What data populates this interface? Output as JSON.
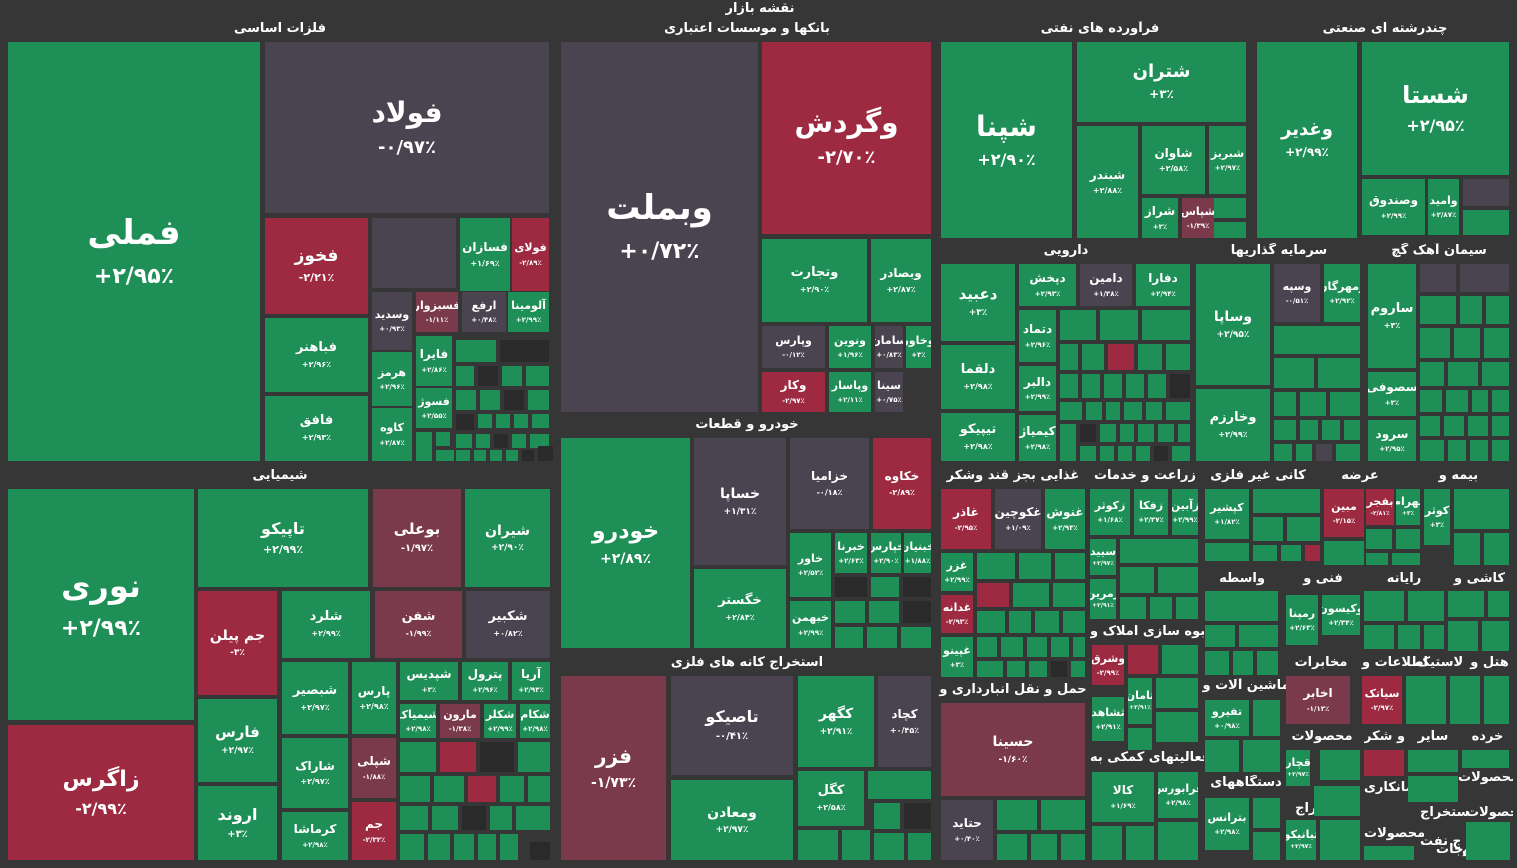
{
  "title": "نقشه بازار",
  "colors": {
    "green": "#1e8f57",
    "red": "#9d2a41",
    "neutral": "#4a4451",
    "pink": "#7a3a4b",
    "background": "#363636"
  },
  "sectors": [
    {
      "name": "فلزات اساسی",
      "tiles": [
        {
          "sym": "فملی",
          "pct": "+۲/۹۵٪",
          "tone": "g"
        },
        {
          "sym": "فولاد",
          "pct": "-۰/۹۷٪",
          "tone": "n"
        },
        {
          "sym": "فخوز",
          "pct": "-۲/۲۱٪",
          "tone": "r"
        },
        {
          "sym": "فسازان",
          "pct": "+۱/۶۹٪",
          "tone": "g"
        },
        {
          "sym": "فولای",
          "pct": "-۲/۸۹٪",
          "tone": "r"
        },
        {
          "sym": "فباهنر",
          "pct": "+۲/۹۶٪",
          "tone": "g"
        },
        {
          "sym": "فافق",
          "pct": "+۲/۹۳٪",
          "tone": "g"
        },
        {
          "sym": "وسدید",
          "pct": "+۰/۹۳٪",
          "tone": "n"
        },
        {
          "sym": "فسبزوار",
          "pct": "-۱/۱۱٪",
          "tone": "p"
        },
        {
          "sym": "ارفع",
          "pct": "+۰/۴۸٪",
          "tone": "n"
        },
        {
          "sym": "آلومینا",
          "pct": "+۲/۹۹٪",
          "tone": "g"
        },
        {
          "sym": "فایرا",
          "pct": "+۲/۸۶٪",
          "tone": "g"
        },
        {
          "sym": "هرمز",
          "pct": "+۲/۹۶٪",
          "tone": "g"
        },
        {
          "sym": "فسوژ",
          "pct": "+۲/۵۵٪",
          "tone": "g"
        },
        {
          "sym": "کاوه",
          "pct": "+۲/۸۷٪",
          "tone": "g"
        }
      ]
    },
    {
      "name": "بانکها و موسسات اعتباری",
      "tiles": [
        {
          "sym": "وبملت",
          "pct": "+۰/۷۲٪",
          "tone": "n"
        },
        {
          "sym": "وگردش",
          "pct": "-۲/۷۰٪",
          "tone": "r"
        },
        {
          "sym": "وتجارت",
          "pct": "+۲/۹۰٪",
          "tone": "g"
        },
        {
          "sym": "وبصادر",
          "pct": "+۲/۸۷٪",
          "tone": "g"
        },
        {
          "sym": "وپارس",
          "pct": "-۰/۱۲٪",
          "tone": "n"
        },
        {
          "sym": "ونوین",
          "pct": "+۱/۹۶٪",
          "tone": "g"
        },
        {
          "sym": "سامان",
          "pct": "+۰/۸۳٪",
          "tone": "n"
        },
        {
          "sym": "وخاور",
          "pct": "+۳٪",
          "tone": "g"
        },
        {
          "sym": "وکار",
          "pct": "-۲/۹۷٪",
          "tone": "r"
        },
        {
          "sym": "وپاسار",
          "pct": "+۲/۱۱٪",
          "tone": "g"
        },
        {
          "sym": "سینا",
          "pct": "+۰/۷۵٪",
          "tone": "n"
        }
      ]
    },
    {
      "name": "فرآورده های نفتی",
      "tiles": [
        {
          "sym": "شپنا",
          "pct": "+۲/۹۰٪",
          "tone": "g"
        },
        {
          "sym": "شتران",
          "pct": "+۳٪",
          "tone": "g"
        },
        {
          "sym": "شبندر",
          "pct": "+۲/۸۸٪",
          "tone": "g"
        },
        {
          "sym": "شاوان",
          "pct": "+۲/۵۸٪",
          "tone": "g"
        },
        {
          "sym": "شبریز",
          "pct": "+۲/۹۷٪",
          "tone": "g"
        },
        {
          "sym": "شراز",
          "pct": "+۳٪",
          "tone": "g"
        },
        {
          "sym": "شپاس",
          "pct": "-۱/۳۹٪",
          "tone": "p"
        }
      ]
    },
    {
      "name": "چندرشته ای صنعتی",
      "tiles": [
        {
          "sym": "وغدیر",
          "pct": "+۲/۹۹٪",
          "tone": "g"
        },
        {
          "sym": "شستا",
          "pct": "+۲/۹۵٪",
          "tone": "g"
        },
        {
          "sym": "وصندوق",
          "pct": "+۲/۹۹٪",
          "tone": "g"
        },
        {
          "sym": "وامید",
          "pct": "+۲/۸۷٪",
          "tone": "g"
        }
      ]
    },
    {
      "name": "شیمیایی",
      "tiles": [
        {
          "sym": "نوری",
          "pct": "+۲/۹۹٪",
          "tone": "g"
        },
        {
          "sym": "زاگرس",
          "pct": "-۲/۹۹٪",
          "tone": "r"
        },
        {
          "sym": "تاپیکو",
          "pct": "+۲/۹۹٪",
          "tone": "g"
        },
        {
          "sym": "بوعلی",
          "pct": "-۱/۹۷٪",
          "tone": "p"
        },
        {
          "sym": "شیران",
          "pct": "+۲/۹۰٪",
          "tone": "g"
        },
        {
          "sym": "جم پیلن",
          "pct": "-۳٪",
          "tone": "r"
        },
        {
          "sym": "شلرد",
          "pct": "+۲/۹۹٪",
          "tone": "g"
        },
        {
          "sym": "شفن",
          "pct": "-۱/۹۹٪",
          "tone": "p"
        },
        {
          "sym": "شکبیر",
          "pct": "+۰/۸۲٪",
          "tone": "n"
        },
        {
          "sym": "فارس",
          "pct": "+۲/۹۷٪",
          "tone": "g"
        },
        {
          "sym": "شپدیس",
          "pct": "+۳٪",
          "tone": "g"
        },
        {
          "sym": "پترول",
          "pct": "+۲/۹۶٪",
          "tone": "g"
        },
        {
          "sym": "آریا",
          "pct": "+۲/۹۳٪",
          "tone": "g"
        },
        {
          "sym": "شبصیر",
          "pct": "+۲/۹۷٪",
          "tone": "g"
        },
        {
          "sym": "پارس",
          "pct": "+۲/۹۸٪",
          "tone": "g"
        },
        {
          "sym": "شیمیاک",
          "pct": "+۲/۹۸٪",
          "tone": "g"
        },
        {
          "sym": "مارون",
          "pct": "-۱/۳۸٪",
          "tone": "p"
        },
        {
          "sym": "شکلر",
          "pct": "+۲/۹۹٪",
          "tone": "g"
        },
        {
          "sym": "شکام",
          "pct": "+۲/۹۸٪",
          "tone": "g"
        },
        {
          "sym": "شاراک",
          "pct": "+۲/۹۷٪",
          "tone": "g"
        },
        {
          "sym": "شپلی",
          "pct": "-۱/۸۸٪",
          "tone": "p"
        },
        {
          "sym": "اروند",
          "pct": "+۳٪",
          "tone": "g"
        },
        {
          "sym": "کرماشا",
          "pct": "+۲/۹۸٪",
          "tone": "g"
        },
        {
          "sym": "جم",
          "pct": "-۲/۳۲٪",
          "tone": "r"
        }
      ]
    },
    {
      "name": "خودرو و قطعات",
      "tiles": [
        {
          "sym": "خودرو",
          "pct": "+۲/۸۹٪",
          "tone": "g"
        },
        {
          "sym": "خساپا",
          "pct": "+۱/۳۱٪",
          "tone": "n"
        },
        {
          "sym": "خزامیا",
          "pct": "-۰/۱۸٪",
          "tone": "n"
        },
        {
          "sym": "خکاوه",
          "pct": "-۲/۸۹٪",
          "tone": "r"
        },
        {
          "sym": "خگستر",
          "pct": "+۲/۸۴٪",
          "tone": "g"
        },
        {
          "sym": "خاور",
          "pct": "+۲/۵۲٪",
          "tone": "g"
        },
        {
          "sym": "خبرنا",
          "pct": "+۲/۶۳٪",
          "tone": "g"
        },
        {
          "sym": "خپارس",
          "pct": "+۲/۹۰٪",
          "tone": "g"
        },
        {
          "sym": "خبنیان",
          "pct": "+۱/۸۸٪",
          "tone": "g"
        },
        {
          "sym": "خبهمن",
          "pct": "+۲/۹۹٪",
          "tone": "g"
        }
      ]
    },
    {
      "name": "استخراج کانه های فلزی",
      "tiles": [
        {
          "sym": "فزر",
          "pct": "-۱/۷۳٪",
          "tone": "p"
        },
        {
          "sym": "تاصیکو",
          "pct": "-۰/۴۱٪",
          "tone": "n"
        },
        {
          "sym": "کگهر",
          "pct": "+۲/۹۱٪",
          "tone": "g"
        },
        {
          "sym": "کچاد",
          "pct": "+۰/۴۵٪",
          "tone": "n"
        },
        {
          "sym": "ومعادن",
          "pct": "+۲/۹۷٪",
          "tone": "g"
        },
        {
          "sym": "کگل",
          "pct": "+۲/۵۸٪",
          "tone": "g"
        }
      ]
    },
    {
      "name": "دارویی",
      "tiles": [
        {
          "sym": "دعبید",
          "pct": "+۳٪",
          "tone": "g"
        },
        {
          "sym": "دپخش",
          "pct": "+۲/۹۳٪",
          "tone": "g"
        },
        {
          "sym": "دامین",
          "pct": "+۱/۳۸٪",
          "tone": "n"
        },
        {
          "sym": "دفارا",
          "pct": "+۲/۹۴٪",
          "tone": "g"
        },
        {
          "sym": "دلقما",
          "pct": "+۲/۹۸٪",
          "tone": "g"
        },
        {
          "sym": "دتماد",
          "pct": "+۲/۹۶٪",
          "tone": "g"
        },
        {
          "sym": "دالبر",
          "pct": "+۲/۹۹٪",
          "tone": "g"
        },
        {
          "sym": "تیپیکو",
          "pct": "+۲/۹۸٪",
          "tone": "g"
        },
        {
          "sym": "کیمیاژ",
          "pct": "+۲/۹۸٪",
          "tone": "g"
        }
      ]
    },
    {
      "name": "سرمایه گذاریها",
      "tiles": [
        {
          "sym": "وساپا",
          "pct": "+۲/۹۵٪",
          "tone": "g"
        },
        {
          "sym": "وسپه",
          "pct": "-۰/۵۱٪",
          "tone": "n"
        },
        {
          "sym": "ومهرگان",
          "pct": "+۲/۹۲٪",
          "tone": "g"
        },
        {
          "sym": "وخارزم",
          "pct": "+۲/۹۹٪",
          "tone": "g"
        }
      ]
    },
    {
      "name": "سیمان آهک گچ",
      "tiles": [
        {
          "sym": "ساروم",
          "pct": "+۳٪",
          "tone": "g"
        },
        {
          "sym": "سصوفی",
          "pct": "+۳٪",
          "tone": "g"
        },
        {
          "sym": "سرود",
          "pct": "+۲/۹۵٪",
          "tone": "g"
        }
      ]
    },
    {
      "name": "غذایی بجز قند وشکر",
      "tiles": [
        {
          "sym": "غاذر",
          "pct": "-۲/۹۵٪",
          "tone": "r"
        },
        {
          "sym": "غکوچین",
          "pct": "+۱/۰۹٪",
          "tone": "n"
        },
        {
          "sym": "غنوش",
          "pct": "+۲/۹۳٪",
          "tone": "g"
        },
        {
          "sym": "غزر",
          "pct": "+۲/۹۹٪",
          "tone": "g"
        },
        {
          "sym": "غدانه",
          "pct": "-۲/۹۳٪",
          "tone": "r"
        },
        {
          "sym": "غپینو",
          "pct": "+۳٪",
          "tone": "g"
        }
      ]
    },
    {
      "name": "زراعت و خدمات",
      "tiles": [
        {
          "sym": "زکوثر",
          "pct": "+۱/۶۸٪",
          "tone": "g"
        },
        {
          "sym": "زفکا",
          "pct": "+۲/۳۷٪",
          "tone": "g"
        },
        {
          "sym": "زآبین",
          "pct": "+۲/۹۹٪",
          "tone": "g"
        },
        {
          "sym": "سیید",
          "pct": "+۲/۹۷٪",
          "tone": "g"
        },
        {
          "sym": "زمرین",
          "pct": "+۲/۹۱٪",
          "tone": "g"
        }
      ]
    },
    {
      "name": "کانی غیر فلزی",
      "tiles": [
        {
          "sym": "کپشیر",
          "pct": "+۱/۸۲٪",
          "tone": "g"
        }
      ]
    },
    {
      "name": "عرضه",
      "tiles": [
        {
          "sym": "مبین",
          "pct": "-۲/۱۵٪",
          "tone": "r"
        }
      ]
    },
    {
      "name": "بیمه و",
      "tiles": [
        {
          "sym": "بفجر",
          "pct": "-۲/۸۱٪",
          "tone": "r"
        },
        {
          "sym": "بهرام",
          "pct": "+۳٪",
          "tone": "g"
        },
        {
          "sym": "کوثر",
          "pct": "+۳٪",
          "tone": "g"
        }
      ]
    },
    {
      "name": "انبوه سازی املاک و",
      "tiles": [
        {
          "sym": "وشرق",
          "pct": "-۲/۹۹٪",
          "tone": "r"
        },
        {
          "sym": "ثامان",
          "pct": "+۲/۹۱٪",
          "tone": "g"
        },
        {
          "sym": "ثشاهد",
          "pct": "+۲/۹۱٪",
          "tone": "g"
        }
      ]
    },
    {
      "name": "واسطه",
      "tiles": []
    },
    {
      "name": "فنی و",
      "tiles": [
        {
          "sym": "رمپنا",
          "pct": "+۲/۶۳٪",
          "tone": "g"
        },
        {
          "sym": "وکیسون",
          "pct": "+۲/۳۴٪",
          "tone": "g"
        }
      ]
    },
    {
      "name": "رایانه",
      "tiles": []
    },
    {
      "name": "کاشی و",
      "tiles": []
    },
    {
      "name": "ماشین آلات و",
      "tiles": [
        {
          "sym": "تفیرو",
          "pct": "+۰/۹۸٪",
          "tone": "g"
        }
      ]
    },
    {
      "name": "حمل و نقل انبارداری و",
      "tiles": [
        {
          "sym": "حسینا",
          "pct": "-۱/۶۰٪",
          "tone": "p"
        },
        {
          "sym": "حتاید",
          "pct": "+۰/۴۰٪",
          "tone": "n"
        }
      ]
    },
    {
      "name": "فعالیتهای کمکی به",
      "tiles": [
        {
          "sym": "کالا",
          "pct": "+۱/۶۹٪",
          "tone": "g"
        },
        {
          "sym": "فرابورس",
          "pct": "+۲/۹۸٪",
          "tone": "g"
        }
      ]
    },
    {
      "name": "مخابرات",
      "tiles": [
        {
          "sym": "اخابر",
          "pct": "-۱/۱۳٪",
          "tone": "p"
        }
      ]
    },
    {
      "name": "اطلاعات و",
      "tiles": [
        {
          "sym": "سیاتک",
          "pct": "-۲/۹۷٪",
          "tone": "r"
        }
      ]
    },
    {
      "name": "لاستیک",
      "tiles": []
    },
    {
      "name": "هتل و",
      "tiles": []
    },
    {
      "name": "دستگاههای",
      "tiles": [
        {
          "sym": "بترانس",
          "pct": "+۲/۹۸٪",
          "tone": "g"
        }
      ]
    },
    {
      "name": "محصولات",
      "tiles": [
        {
          "sym": "ثبانیکو",
          "pct": "+۲/۹۷٪",
          "tone": "g"
        }
      ]
    },
    {
      "name": "قند و شکر",
      "tiles": [
        {
          "sym": "قچار",
          "pct": "+۲/۹۷٪",
          "tone": "g"
        }
      ]
    },
    {
      "name": "سایر",
      "tiles": []
    },
    {
      "name": "خرده",
      "tiles": []
    },
    {
      "name": "پیمانکاری",
      "tiles": []
    },
    {
      "name": "محصولات",
      "tiles": []
    },
    {
      "name": "استخراج",
      "tiles": []
    },
    {
      "name": "محصولات",
      "tiles": []
    },
    {
      "name": "استخراج",
      "tiles": []
    },
    {
      "name": "محصولات",
      "tiles": []
    },
    {
      "name": "استخراج نفت",
      "tiles": []
    },
    {
      "name": "منسوجات",
      "tiles": []
    },
    {
      "name": "وسایل",
      "tiles": []
    },
    {
      "name": "حمل",
      "tiles": []
    },
    {
      "name": "ادار",
      "tiles": []
    }
  ]
}
